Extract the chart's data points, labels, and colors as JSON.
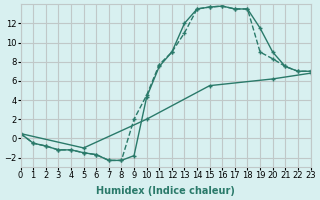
{
  "xlabel": "Humidex (Indice chaleur)",
  "bg_color": "#d8f0f0",
  "grid_color": "#c0c8c8",
  "line_color": "#2a7a6a",
  "xlim": [
    0,
    23
  ],
  "ylim": [
    -3,
    14
  ],
  "xticks": [
    0,
    1,
    2,
    3,
    4,
    5,
    6,
    7,
    8,
    9,
    10,
    11,
    12,
    13,
    14,
    15,
    16,
    17,
    18,
    19,
    20,
    21,
    22,
    23
  ],
  "yticks": [
    -2,
    0,
    2,
    4,
    6,
    8,
    10,
    12
  ],
  "line1_x": [
    0,
    1,
    2,
    3,
    4,
    5,
    6,
    7,
    8,
    9,
    10,
    11,
    12,
    13,
    14,
    15,
    16,
    17,
    18,
    19,
    20,
    21,
    22,
    23
  ],
  "line1_y": [
    0.5,
    -0.5,
    -0.8,
    -1.2,
    -1.2,
    -1.5,
    -1.7,
    -2.3,
    -2.3,
    -1.8,
    4.3,
    7.5,
    9.0,
    12.0,
    13.5,
    13.7,
    13.8,
    13.5,
    13.5,
    11.5,
    9.0,
    7.5,
    7.0,
    7.0
  ],
  "line2_x": [
    0,
    1,
    2,
    3,
    4,
    5,
    6,
    7,
    8,
    9,
    10,
    11,
    12,
    13,
    14,
    15,
    16,
    17,
    18,
    19,
    20,
    21,
    22,
    23
  ],
  "line2_y": [
    0.5,
    -0.5,
    -0.8,
    -1.2,
    -1.2,
    -1.5,
    -1.7,
    -2.3,
    -2.3,
    2.0,
    4.5,
    7.7,
    9.0,
    11.0,
    13.5,
    13.7,
    13.8,
    13.5,
    13.5,
    9.0,
    8.3,
    7.5,
    7.0,
    7.0
  ],
  "line3_x": [
    0,
    5,
    10,
    15,
    20,
    23
  ],
  "line3_y": [
    0.5,
    -1.0,
    2.0,
    5.5,
    6.2,
    6.8
  ]
}
